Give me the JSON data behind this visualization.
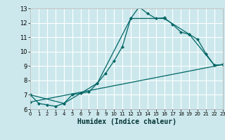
{
  "title": "",
  "xlabel": "Humidex (Indice chaleur)",
  "bg_color": "#cce8ec",
  "grid_color": "#ffffff",
  "line_color": "#006666",
  "xlim": [
    0,
    23
  ],
  "ylim": [
    6,
    13
  ],
  "xticks": [
    0,
    1,
    2,
    3,
    4,
    5,
    6,
    7,
    8,
    9,
    10,
    11,
    12,
    13,
    14,
    15,
    16,
    17,
    18,
    19,
    20,
    21,
    22,
    23
  ],
  "yticks": [
    6,
    7,
    8,
    9,
    10,
    11,
    12,
    13
  ],
  "line1_x": [
    0,
    1,
    2,
    3,
    4,
    5,
    6,
    7,
    8,
    9,
    10,
    11,
    12,
    13,
    14,
    15,
    16,
    17,
    18,
    19,
    20,
    21,
    22,
    23
  ],
  "line1_y": [
    7.0,
    6.4,
    6.3,
    6.2,
    6.4,
    7.0,
    7.1,
    7.2,
    7.8,
    8.5,
    9.35,
    10.35,
    12.3,
    13.1,
    12.65,
    12.3,
    12.35,
    11.9,
    11.35,
    11.2,
    10.85,
    9.85,
    9.05,
    9.1
  ],
  "line2_x": [
    0,
    4,
    8,
    12,
    16,
    19,
    22,
    23
  ],
  "line2_y": [
    7.0,
    6.4,
    7.8,
    12.3,
    12.3,
    11.2,
    9.05,
    9.1
  ],
  "line3_x": [
    0,
    23
  ],
  "line3_y": [
    6.5,
    9.1
  ]
}
